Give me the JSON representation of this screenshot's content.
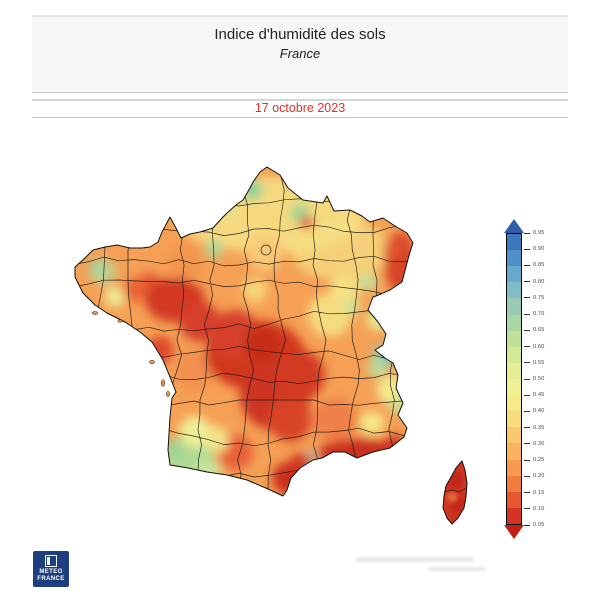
{
  "header": {
    "title": "Indice d'humidité des sols",
    "subtitle": "France",
    "background_color": "#f5f6f5"
  },
  "date_banner": {
    "text": "17 octobre 2023",
    "color": "#e03028"
  },
  "map": {
    "region": "France",
    "kind": "soil-moisture-index heatmap with department borders",
    "outline_color": "#111111"
  },
  "legend": {
    "ticks": [
      "0.95",
      "0.90",
      "0.85",
      "0.80",
      "0.75",
      "0.70",
      "0.65",
      "0.60",
      "0.55",
      "0.50",
      "0.45",
      "0.40",
      "0.35",
      "0.30",
      "0.25",
      "0.20",
      "0.15",
      "0.10",
      "0.05"
    ],
    "band_colors_top_to_bottom": [
      "#3d78bc",
      "#4f90c6",
      "#68a8cc",
      "#82bcc4",
      "#98cab4",
      "#aad6a4",
      "#bfe19c",
      "#d3e996",
      "#e4ee94",
      "#f0f094",
      "#f6ea89",
      "#f9dc7d",
      "#fbc96c",
      "#fab35c",
      "#f79a4d",
      "#f07d3e",
      "#e65731",
      "#d53425"
    ],
    "arrow_top_color": "#2c5fa8",
    "arrow_bottom_color": "#c01f14"
  },
  "chart_data": {
    "type": "heatmap",
    "title": "Indice d'humidité des sols",
    "subtitle": "France",
    "date": "17 octobre 2023",
    "scale_min": 0.05,
    "scale_max": 0.95,
    "scale_step": 0.05,
    "legend_position": "right"
  },
  "logo": {
    "line1": "METEO",
    "line2": "FRANCE",
    "background_color": "#1e3f7f"
  }
}
